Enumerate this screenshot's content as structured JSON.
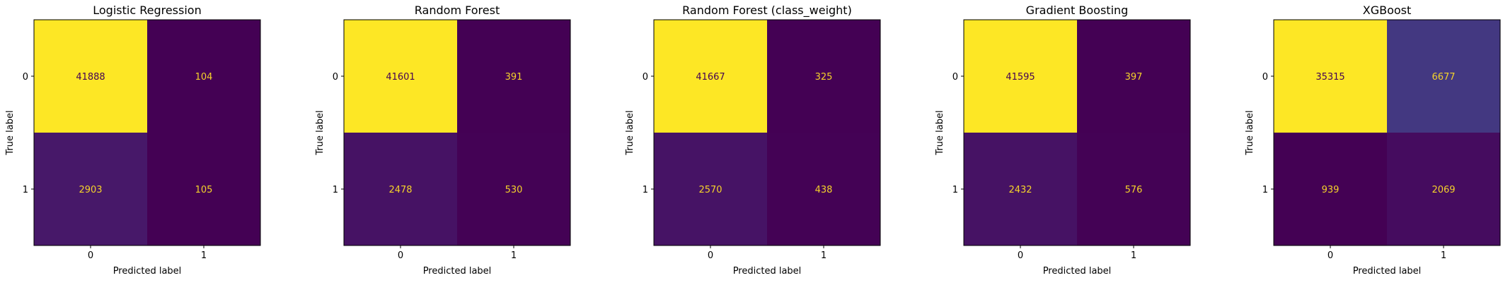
{
  "chart_data": [
    {
      "type": "heatmap",
      "title": "Logistic Regression",
      "xlabel": "Predicted label",
      "ylabel": "True label",
      "x_ticks": [
        "0",
        "1"
      ],
      "y_ticks": [
        "0",
        "1"
      ],
      "matrix": [
        [
          41888,
          104
        ],
        [
          2903,
          105
        ]
      ],
      "colormap": "viridis",
      "text_color": "#f5d32a"
    },
    {
      "type": "heatmap",
      "title": "Random Forest",
      "xlabel": "Predicted label",
      "ylabel": "True label",
      "x_ticks": [
        "0",
        "1"
      ],
      "y_ticks": [
        "0",
        "1"
      ],
      "matrix": [
        [
          41601,
          391
        ],
        [
          2478,
          530
        ]
      ],
      "colormap": "viridis",
      "text_color": "#f5d32a"
    },
    {
      "type": "heatmap",
      "title": "Random Forest (class_weight)",
      "xlabel": "Predicted label",
      "ylabel": "True label",
      "x_ticks": [
        "0",
        "1"
      ],
      "y_ticks": [
        "0",
        "1"
      ],
      "matrix": [
        [
          41667,
          325
        ],
        [
          2570,
          438
        ]
      ],
      "colormap": "viridis",
      "text_color": "#f5d32a"
    },
    {
      "type": "heatmap",
      "title": "Gradient Boosting",
      "xlabel": "Predicted label",
      "ylabel": "True label",
      "x_ticks": [
        "0",
        "1"
      ],
      "y_ticks": [
        "0",
        "1"
      ],
      "matrix": [
        [
          41595,
          397
        ],
        [
          2432,
          576
        ]
      ],
      "colormap": "viridis",
      "text_color": "#f5d32a"
    },
    {
      "type": "heatmap",
      "title": "XGBoost",
      "xlabel": "Predicted label",
      "ylabel": "True label",
      "x_ticks": [
        "0",
        "1"
      ],
      "y_ticks": [
        "0",
        "1"
      ],
      "matrix": [
        [
          35315,
          6677
        ],
        [
          939,
          2069
        ]
      ],
      "colormap": "viridis",
      "text_color": "#f5d32a"
    }
  ],
  "colors": {
    "viridis_low": "#440154",
    "viridis_high": "#fde725"
  }
}
